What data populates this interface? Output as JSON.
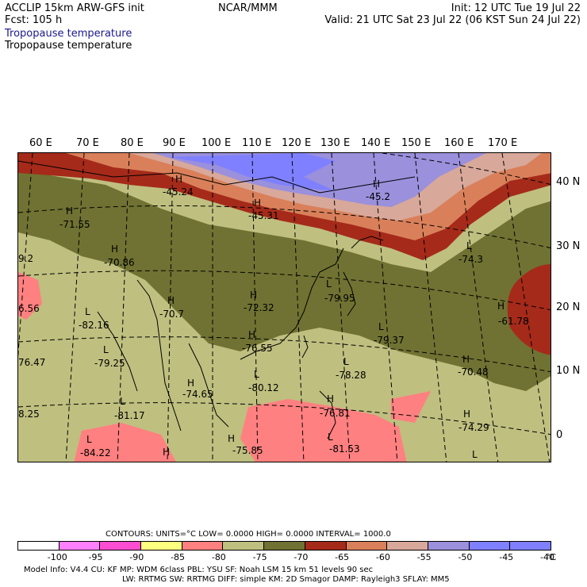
{
  "header": {
    "model": "ACCLIP 15km ARW-GFS init",
    "fcst": "Fcst:  105 h",
    "center": "NCAR/MMM",
    "init": "Init: 12 UTC Tue 19 Jul 22",
    "valid": "Valid: 21 UTC Sat 23 Jul 22 (06 KST Sun 24 Jul 22)",
    "field_colored": "Tropopause temperature",
    "field_contour": "Tropopause temperature"
  },
  "lon_labels": [
    "60 E",
    "70 E",
    "80 E",
    "90 E",
    "100 E",
    "110 E",
    "120 E",
    "130 E",
    "140 E",
    "150 E",
    "160 E",
    "170 E"
  ],
  "lat_labels": [
    "40 N",
    "30 N",
    "20 N",
    "10 N",
    "0"
  ],
  "contour_labels": [
    {
      "letter": "H",
      "value": "-45.24"
    },
    {
      "letter": "H",
      "value": "-45.31"
    },
    {
      "letter": "H",
      "value": "-45.2"
    },
    {
      "letter": "H",
      "value": "-71.55"
    },
    {
      "letter": "H",
      "value": "-70.86"
    },
    {
      "letter": "L",
      "value": "-74.3"
    },
    {
      "letter": "H",
      "value": "-70.7"
    },
    {
      "letter": "H",
      "value": "-72.32"
    },
    {
      "letter": "L",
      "value": "-79.95"
    },
    {
      "letter": "L",
      "value": "-82.16"
    },
    {
      "letter": "H",
      "value": "-76.55"
    },
    {
      "letter": "L",
      "value": "-79.37"
    },
    {
      "letter": "H",
      "value": "-61.78"
    },
    {
      "letter": "L",
      "value": "-79.25"
    },
    {
      "letter": "L",
      "value": "-78.28"
    },
    {
      "letter": "H",
      "value": "-70.48"
    },
    {
      "letter": "H",
      "value": "-74.65"
    },
    {
      "letter": "L",
      "value": "-80.12"
    },
    {
      "letter": "H",
      "value": "-76.81"
    },
    {
      "letter": "L",
      "value": "-81.17"
    },
    {
      "letter": "H",
      "value": "-74.29"
    },
    {
      "letter": "L",
      "value": "-84.22"
    },
    {
      "letter": "H",
      "value": "-75.85"
    },
    {
      "letter": "L",
      "value": "-81.53"
    },
    {
      "letter": "",
      "value": "9.2"
    },
    {
      "letter": "",
      "value": "6.56"
    },
    {
      "letter": "",
      "value": "76.47"
    },
    {
      "letter": "",
      "value": "8.25"
    },
    {
      "letter": "L",
      "value": ""
    },
    {
      "letter": "H",
      "value": ""
    }
  ],
  "contours_line": "CONTOURS:  UNITS=°C  LOW=  0.0000      HIGH=  0.0000      INTERVAL=   1000.0",
  "colorbar": {
    "colors": [
      "#ffffff",
      "#ff80ff",
      "#ff4dd2",
      "#ffff80",
      "#ff8080",
      "#bfbf80",
      "#6f7232",
      "#a52a1a",
      "#d9805a",
      "#d8a89a",
      "#9a90dc",
      "#7f80ff",
      "#7f7fff"
    ],
    "ticks": [
      "-100",
      "-95",
      "-90",
      "-85",
      "-80",
      "-75",
      "-70",
      "-65",
      "-60",
      "-55",
      "-50",
      "-45",
      "-40"
    ],
    "unit": "°C"
  },
  "footer": {
    "line1": "Model Info: V4.4        CU: KF        MP: WDM 6class   PBL: YSU       SF: Noah LSM      15 km     51 levels    90 sec",
    "line2": "LW: RRTMG    SW: RRTMG    DIFF: simple KM: 2D Smagor DAMP: Rayleigh3  SFLAY: MM5"
  }
}
